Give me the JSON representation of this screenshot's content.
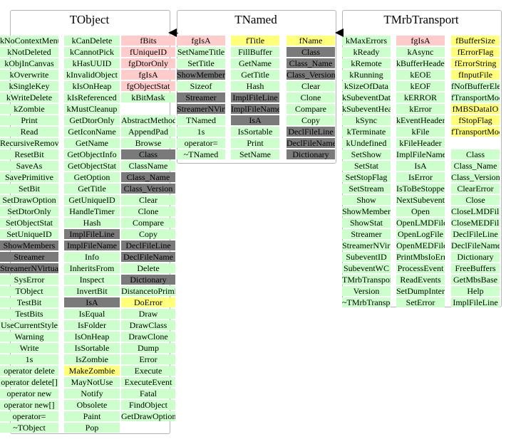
{
  "classes": [
    {
      "key": "tobject",
      "title": "TObject",
      "columns": [
        [
          {
            "t": "kNoContextMenu",
            "c": "green"
          },
          {
            "t": "kNotDeleted",
            "c": "green"
          },
          {
            "t": "kObjInCanvas",
            "c": "green"
          },
          {
            "t": "kOverwrite",
            "c": "green"
          },
          {
            "t": "kSingleKey",
            "c": "green"
          },
          {
            "t": "kWriteDelete",
            "c": "green"
          },
          {
            "t": "kZombie",
            "c": "green"
          },
          {
            "t": "Print",
            "c": "green"
          },
          {
            "t": "Read",
            "c": "green"
          },
          {
            "t": "RecursiveRemove",
            "c": "green"
          },
          {
            "t": "ResetBit",
            "c": "green"
          },
          {
            "t": "SaveAs",
            "c": "green"
          },
          {
            "t": "SavePrimitive",
            "c": "green"
          },
          {
            "t": "SetBit",
            "c": "green"
          },
          {
            "t": "SetDrawOption",
            "c": "green"
          },
          {
            "t": "SetDtorOnly",
            "c": "green"
          },
          {
            "t": "SetObjectStat",
            "c": "green"
          },
          {
            "t": "SetUniqueID",
            "c": "green"
          },
          {
            "t": "ShowMembers",
            "c": "gray"
          },
          {
            "t": "Streamer",
            "c": "gray"
          },
          {
            "t": "StreamerNVirtual",
            "c": "gray"
          },
          {
            "t": "SysError",
            "c": "green"
          },
          {
            "t": "TObject",
            "c": "green"
          },
          {
            "t": "TestBit",
            "c": "green"
          },
          {
            "t": "TestBits",
            "c": "green"
          },
          {
            "t": "UseCurrentStyle",
            "c": "green"
          },
          {
            "t": "Warning",
            "c": "green"
          },
          {
            "t": "Write",
            "c": "green"
          },
          {
            "t": "1s",
            "c": "green"
          },
          {
            "t": "operator delete",
            "c": "green"
          },
          {
            "t": "operator delete[]",
            "c": "green"
          },
          {
            "t": "operator new",
            "c": "green"
          },
          {
            "t": "operator new[]",
            "c": "green"
          },
          {
            "t": "operator=",
            "c": "green"
          },
          {
            "t": "~TObject",
            "c": "green"
          }
        ],
        [
          {
            "t": "kCanDelete",
            "c": "green"
          },
          {
            "t": "kCannotPick",
            "c": "green"
          },
          {
            "t": "kHasUUID",
            "c": "green"
          },
          {
            "t": "kInvalidObject",
            "c": "green"
          },
          {
            "t": "kIsOnHeap",
            "c": "green"
          },
          {
            "t": "kIsReferenced",
            "c": "green"
          },
          {
            "t": "kMustCleanup",
            "c": "green"
          },
          {
            "t": "GetDtorOnly",
            "c": "green"
          },
          {
            "t": "GetIconName",
            "c": "green"
          },
          {
            "t": "GetName",
            "c": "green"
          },
          {
            "t": "GetObjectInfo",
            "c": "green"
          },
          {
            "t": "GetObjectStat",
            "c": "green"
          },
          {
            "t": "GetOption",
            "c": "green"
          },
          {
            "t": "GetTitle",
            "c": "green"
          },
          {
            "t": "GetUniqueID",
            "c": "green"
          },
          {
            "t": "HandleTimer",
            "c": "green"
          },
          {
            "t": "Hash",
            "c": "green"
          },
          {
            "t": "ImplFileLine",
            "c": "gray"
          },
          {
            "t": "ImplFileName",
            "c": "gray"
          },
          {
            "t": "Info",
            "c": "green"
          },
          {
            "t": "InheritsFrom",
            "c": "green"
          },
          {
            "t": "Inspect",
            "c": "green"
          },
          {
            "t": "InvertBit",
            "c": "green"
          },
          {
            "t": "IsA",
            "c": "gray"
          },
          {
            "t": "IsEqual",
            "c": "green"
          },
          {
            "t": "IsFolder",
            "c": "green"
          },
          {
            "t": "IsOnHeap",
            "c": "green"
          },
          {
            "t": "IsSortable",
            "c": "green"
          },
          {
            "t": "IsZombie",
            "c": "green"
          },
          {
            "t": "MakeZombie",
            "c": "yellow"
          },
          {
            "t": "MayNotUse",
            "c": "green"
          },
          {
            "t": "Notify",
            "c": "green"
          },
          {
            "t": "Obsolete",
            "c": "green"
          },
          {
            "t": "Paint",
            "c": "green"
          },
          {
            "t": "Pop",
            "c": "green"
          }
        ],
        [
          {
            "t": "fBits",
            "c": "pink"
          },
          {
            "t": "fUniqueID",
            "c": "pink"
          },
          {
            "t": "fgDtorOnly",
            "c": "pink"
          },
          {
            "t": "fgIsA",
            "c": "pink"
          },
          {
            "t": "fgObjectStat",
            "c": "pink"
          },
          {
            "t": "kBitMask",
            "c": "green"
          },
          {
            "t": "",
            "c": "none"
          },
          {
            "t": "AbstractMethod",
            "c": "green"
          },
          {
            "t": "AppendPad",
            "c": "green"
          },
          {
            "t": "Browse",
            "c": "green"
          },
          {
            "t": "Class",
            "c": "gray"
          },
          {
            "t": "ClassName",
            "c": "green"
          },
          {
            "t": "Class_Name",
            "c": "gray"
          },
          {
            "t": "Class_Version",
            "c": "gray"
          },
          {
            "t": "Clear",
            "c": "green"
          },
          {
            "t": "Clone",
            "c": "green"
          },
          {
            "t": "Compare",
            "c": "green"
          },
          {
            "t": "Copy",
            "c": "green"
          },
          {
            "t": "DeclFileLine",
            "c": "gray"
          },
          {
            "t": "DeclFileName",
            "c": "gray"
          },
          {
            "t": "Delete",
            "c": "green"
          },
          {
            "t": "Dictionary",
            "c": "gray"
          },
          {
            "t": "DistancetoPrimitive",
            "c": "green"
          },
          {
            "t": "DoError",
            "c": "yellow"
          },
          {
            "t": "Draw",
            "c": "green"
          },
          {
            "t": "DrawClass",
            "c": "green"
          },
          {
            "t": "DrawClone",
            "c": "green"
          },
          {
            "t": "Dump",
            "c": "green"
          },
          {
            "t": "Error",
            "c": "green"
          },
          {
            "t": "Execute",
            "c": "green"
          },
          {
            "t": "ExecuteEvent",
            "c": "green"
          },
          {
            "t": "Fatal",
            "c": "green"
          },
          {
            "t": "FindObject",
            "c": "green"
          },
          {
            "t": "GetDrawOption",
            "c": "green"
          }
        ]
      ]
    },
    {
      "key": "tnamed",
      "title": "TNamed",
      "columns": [
        [
          {
            "t": "fgIsA",
            "c": "pink"
          },
          {
            "t": "SetNameTitle",
            "c": "green"
          },
          {
            "t": "SetTitle",
            "c": "green"
          },
          {
            "t": "ShowMembers",
            "c": "gray"
          },
          {
            "t": "Sizeof",
            "c": "green"
          },
          {
            "t": "Streamer",
            "c": "gray"
          },
          {
            "t": "StreamerNVirtual",
            "c": "gray"
          },
          {
            "t": "TNamed",
            "c": "green"
          },
          {
            "t": "1s",
            "c": "green"
          },
          {
            "t": "operator=",
            "c": "green"
          },
          {
            "t": "~TNamed",
            "c": "green"
          }
        ],
        [
          {
            "t": "fTitle",
            "c": "yellow"
          },
          {
            "t": "FillBuffer",
            "c": "green"
          },
          {
            "t": "GetName",
            "c": "green"
          },
          {
            "t": "GetTitle",
            "c": "green"
          },
          {
            "t": "Hash",
            "c": "green"
          },
          {
            "t": "ImplFileLine",
            "c": "gray"
          },
          {
            "t": "ImplFileName",
            "c": "gray"
          },
          {
            "t": "IsA",
            "c": "gray"
          },
          {
            "t": "IsSortable",
            "c": "green"
          },
          {
            "t": "Print",
            "c": "green"
          },
          {
            "t": "SetName",
            "c": "green"
          }
        ],
        [
          {
            "t": "fName",
            "c": "yellow"
          },
          {
            "t": "Class",
            "c": "gray"
          },
          {
            "t": "Class_Name",
            "c": "gray"
          },
          {
            "t": "Class_Version",
            "c": "gray"
          },
          {
            "t": "Clear",
            "c": "green"
          },
          {
            "t": "Clone",
            "c": "green"
          },
          {
            "t": "Compare",
            "c": "green"
          },
          {
            "t": "Copy",
            "c": "green"
          },
          {
            "t": "DeclFileLine",
            "c": "gray"
          },
          {
            "t": "DeclFileName",
            "c": "gray"
          },
          {
            "t": "Dictionary",
            "c": "gray"
          }
        ]
      ]
    },
    {
      "key": "tmrbtransport",
      "title": "TMrbTransport",
      "columns": [
        [
          {
            "t": "kMaxErrors",
            "c": "green"
          },
          {
            "t": "kReady",
            "c": "green"
          },
          {
            "t": "kRemote",
            "c": "green"
          },
          {
            "t": "kRunning",
            "c": "green"
          },
          {
            "t": "kSizeOfData",
            "c": "green"
          },
          {
            "t": "kSubeventData",
            "c": "green"
          },
          {
            "t": "kSubeventHeader",
            "c": "green"
          },
          {
            "t": "kSync",
            "c": "green"
          },
          {
            "t": "kTerminate",
            "c": "green"
          },
          {
            "t": "kUndefined",
            "c": "green"
          },
          {
            "t": "SetShow",
            "c": "green"
          },
          {
            "t": "SetStat",
            "c": "green"
          },
          {
            "t": "SetStopFlag",
            "c": "green"
          },
          {
            "t": "SetStream",
            "c": "green"
          },
          {
            "t": "Show",
            "c": "green"
          },
          {
            "t": "ShowMembers",
            "c": "green"
          },
          {
            "t": "ShowStat",
            "c": "green"
          },
          {
            "t": "Streamer",
            "c": "green"
          },
          {
            "t": "StreamerNVirtual",
            "c": "green"
          },
          {
            "t": "SubeventID",
            "c": "green"
          },
          {
            "t": "SubeventWC",
            "c": "green"
          },
          {
            "t": "TMrbTransport",
            "c": "green"
          },
          {
            "t": "Version",
            "c": "green"
          },
          {
            "t": "~TMrbTransport",
            "c": "green"
          }
        ],
        [
          {
            "t": "fgIsA",
            "c": "pink"
          },
          {
            "t": "kAsync",
            "c": "green"
          },
          {
            "t": "kBufferHeader",
            "c": "green"
          },
          {
            "t": "kEOE",
            "c": "green"
          },
          {
            "t": "kEOF",
            "c": "green"
          },
          {
            "t": "kERROR",
            "c": "green"
          },
          {
            "t": "kError",
            "c": "green"
          },
          {
            "t": "kEventHeader",
            "c": "green"
          },
          {
            "t": "kFile",
            "c": "green"
          },
          {
            "t": "kFileHeader",
            "c": "green"
          },
          {
            "t": "ImplFileName",
            "c": "green"
          },
          {
            "t": "IsA",
            "c": "green"
          },
          {
            "t": "IsError",
            "c": "green"
          },
          {
            "t": "IsToBeStopped",
            "c": "green"
          },
          {
            "t": "NextSubevent",
            "c": "green"
          },
          {
            "t": "Open",
            "c": "green"
          },
          {
            "t": "OpenLMDFile",
            "c": "green"
          },
          {
            "t": "OpenLogFile",
            "c": "green"
          },
          {
            "t": "OpenMEDFile",
            "c": "green"
          },
          {
            "t": "PrintMbsIoError",
            "c": "green"
          },
          {
            "t": "ProcessEvent",
            "c": "green"
          },
          {
            "t": "ReadEvents",
            "c": "green"
          },
          {
            "t": "SetDumpInterval",
            "c": "green"
          },
          {
            "t": "SetError",
            "c": "green"
          }
        ],
        [
          {
            "t": "fBufferSize",
            "c": "yellow"
          },
          {
            "t": "fErrorFlag",
            "c": "yellow"
          },
          {
            "t": "fErrorString",
            "c": "yellow"
          },
          {
            "t": "fInputFile",
            "c": "yellow"
          },
          {
            "t": "fNofBufferElements",
            "c": "green"
          },
          {
            "t": "fTransportMode",
            "c": "green"
          },
          {
            "t": "fMBSDataIO",
            "c": "yellow"
          },
          {
            "t": "fStopFlag",
            "c": "yellow"
          },
          {
            "t": "fTransportMode",
            "c": "yellow"
          },
          {
            "t": "",
            "c": "none"
          },
          {
            "t": "Class",
            "c": "green"
          },
          {
            "t": "Class_Name",
            "c": "green"
          },
          {
            "t": "Class_Version",
            "c": "green"
          },
          {
            "t": "ClearError",
            "c": "green"
          },
          {
            "t": "Close",
            "c": "green"
          },
          {
            "t": "CloseLMDFile",
            "c": "green"
          },
          {
            "t": "CloseMEDFile",
            "c": "green"
          },
          {
            "t": "DeclFileLine",
            "c": "green"
          },
          {
            "t": "DeclFileName",
            "c": "green"
          },
          {
            "t": "Dictionary",
            "c": "green"
          },
          {
            "t": "FreeBuffers",
            "c": "green"
          },
          {
            "t": "GetMbsBase",
            "c": "green"
          },
          {
            "t": "Help",
            "c": "green"
          },
          {
            "t": "ImplFileLine",
            "c": "green"
          }
        ]
      ]
    }
  ]
}
